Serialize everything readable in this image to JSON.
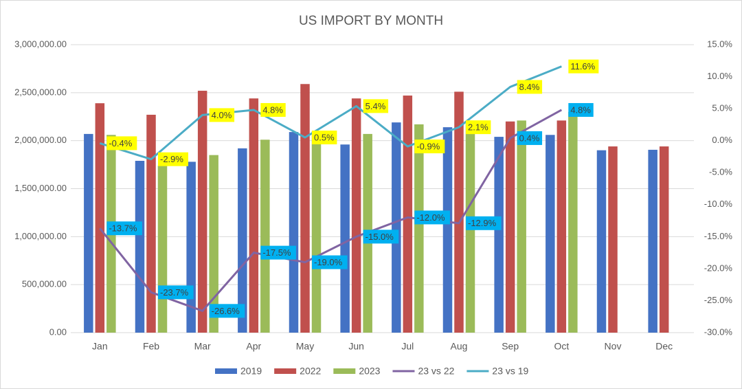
{
  "chart_data": {
    "type": "bar",
    "title": "US IMPORT BY MONTH",
    "categories": [
      "Jan",
      "Feb",
      "Mar",
      "Apr",
      "May",
      "Jun",
      "Jul",
      "Aug",
      "Sep",
      "Oct",
      "Nov",
      "Dec"
    ],
    "series": [
      {
        "name": "2019",
        "color": "#4472c4",
        "values": [
          2070000,
          1790000,
          1780000,
          1920000,
          2090000,
          1960000,
          2190000,
          2140000,
          2040000,
          2060000,
          1900000,
          1905000
        ]
      },
      {
        "name": "2022",
        "color": "#c0504d",
        "values": [
          2390000,
          2270000,
          2520000,
          2440000,
          2590000,
          2440000,
          2470000,
          2510000,
          2200000,
          2210000,
          1940000,
          1940000
        ]
      },
      {
        "name": "2023",
        "color": "#9bbb59",
        "values": [
          2060000,
          1740000,
          1850000,
          2010000,
          2100000,
          2070000,
          2170000,
          2190000,
          2210000,
          2300000,
          null,
          null
        ]
      },
      {
        "name": "23 vs 22",
        "type": "line",
        "axis": "y2",
        "color": "#8064a2",
        "label_color": "#00b0f0",
        "values": [
          -13.7,
          -23.7,
          -26.6,
          -17.5,
          -19.0,
          -15.0,
          -12.0,
          -12.9,
          0.4,
          4.8,
          null,
          null
        ],
        "value_labels": [
          "-13.7%",
          "-23.7%",
          "-26.6%",
          "-17.5%",
          "-19.0%",
          "-15.0%",
          "-12.0%",
          "-12.9%",
          "0.4%",
          "4.8%",
          null,
          null
        ]
      },
      {
        "name": "23 vs 19",
        "type": "line",
        "axis": "y2",
        "color": "#4bacc6",
        "label_color": "#ffff00",
        "values": [
          -0.4,
          -2.9,
          4.0,
          4.8,
          0.5,
          5.4,
          -0.9,
          2.1,
          8.4,
          11.6,
          null,
          null
        ],
        "value_labels": [
          "-0.4%",
          "-2.9%",
          "4.0%",
          "4.8%",
          "0.5%",
          "5.4%",
          "-0.9%",
          "2.1%",
          "8.4%",
          "11.6%",
          null,
          null
        ]
      }
    ],
    "ylim": [
      0,
      3000000
    ],
    "yticks": [
      {
        "value": 0,
        "label": "0.00"
      },
      {
        "value": 500000,
        "label": "500,000.00"
      },
      {
        "value": 1000000,
        "label": "1,000,000.00"
      },
      {
        "value": 1500000,
        "label": "1,500,000.00"
      },
      {
        "value": 2000000,
        "label": "2,000,000.00"
      },
      {
        "value": 2500000,
        "label": "2,500,000.00"
      },
      {
        "value": 3000000,
        "label": "3,000,000.00"
      }
    ],
    "y2lim": [
      -30,
      15
    ],
    "y2ticks": [
      {
        "value": -30,
        "label": "-30.0%"
      },
      {
        "value": -25,
        "label": "-25.0%"
      },
      {
        "value": -20,
        "label": "-20.0%"
      },
      {
        "value": -15,
        "label": "-15.0%"
      },
      {
        "value": -10,
        "label": "-10.0%"
      },
      {
        "value": -5,
        "label": "-5.0%"
      },
      {
        "value": 0,
        "label": "0.0%"
      },
      {
        "value": 5,
        "label": "5.0%"
      },
      {
        "value": 10,
        "label": "10.0%"
      },
      {
        "value": 15,
        "label": "15.0%"
      }
    ],
    "grid": true,
    "legend": "bottom"
  }
}
